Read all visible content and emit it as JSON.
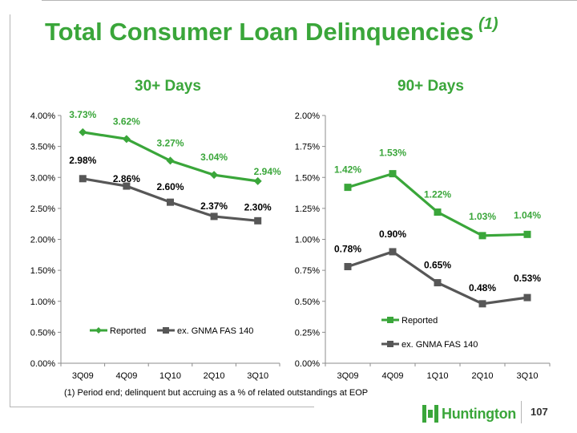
{
  "title": "Total Consumer Loan Delinquencies",
  "title_note": "(1)",
  "footnote": "(1) Period end; delinquent but accruing as a % of related outstandings at EOP",
  "brand": {
    "name": "Huntington",
    "color": "#3aa63a"
  },
  "page_number": "107",
  "colors": {
    "reported": "#3aa63a",
    "ex_gnma": "#575757"
  },
  "chart_data": [
    {
      "type": "line",
      "title": "30+ Days",
      "categories": [
        "3Q09",
        "4Q09",
        "1Q10",
        "2Q10",
        "3Q10"
      ],
      "ylim": [
        0,
        4
      ],
      "yticks": [
        "0.00%",
        "0.50%",
        "1.00%",
        "1.50%",
        "2.00%",
        "2.50%",
        "3.00%",
        "3.50%",
        "4.00%"
      ],
      "legend_position": "bottom, horizontal",
      "series": [
        {
          "name": "Reported",
          "marker": "diamond",
          "values": [
            3.73,
            3.62,
            3.27,
            3.04,
            2.94
          ],
          "labels": [
            "3.73%",
            "3.62%",
            "3.27%",
            "3.04%",
            "2.94%"
          ]
        },
        {
          "name": "ex. GNMA FAS 140",
          "marker": "square",
          "values": [
            2.98,
            2.86,
            2.6,
            2.37,
            2.3
          ],
          "labels": [
            "2.98%",
            "2.86%",
            "2.60%",
            "2.37%",
            "2.30%"
          ]
        }
      ]
    },
    {
      "type": "line",
      "title": "90+ Days",
      "categories": [
        "3Q09",
        "4Q09",
        "1Q10",
        "2Q10",
        "3Q10"
      ],
      "ylim": [
        0,
        2
      ],
      "yticks": [
        "0.00%",
        "0.25%",
        "0.50%",
        "0.75%",
        "1.00%",
        "1.25%",
        "1.50%",
        "1.75%",
        "2.00%"
      ],
      "legend_position": "bottom-left, stacked",
      "series": [
        {
          "name": "Reported",
          "marker": "square",
          "values": [
            1.42,
            1.53,
            1.22,
            1.03,
            1.04
          ],
          "labels": [
            "1.42%",
            "1.53%",
            "1.22%",
            "1.03%",
            "1.04%"
          ]
        },
        {
          "name": "ex. GNMA FAS 140",
          "marker": "square",
          "values": [
            0.78,
            0.9,
            0.65,
            0.48,
            0.53
          ],
          "labels": [
            "0.78%",
            "0.90%",
            "0.65%",
            "0.48%",
            "0.53%"
          ]
        }
      ]
    }
  ]
}
